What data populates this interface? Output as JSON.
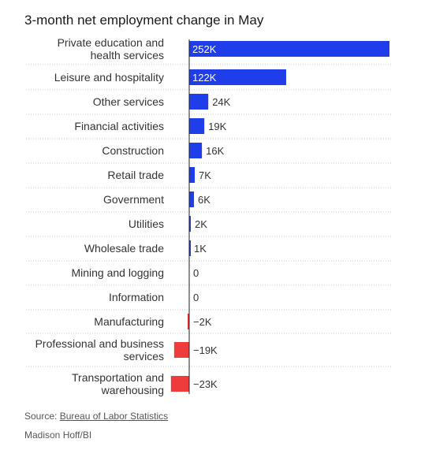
{
  "chart_data": {
    "type": "bar",
    "orientation": "horizontal",
    "title": "3-month net employment change in May",
    "categories": [
      [
        "Private education and",
        "health services"
      ],
      [
        "Leisure and hospitality"
      ],
      [
        "Other services"
      ],
      [
        "Financial activities"
      ],
      [
        "Construction"
      ],
      [
        "Retail trade"
      ],
      [
        "Government"
      ],
      [
        "Utilities"
      ],
      [
        "Wholesale trade"
      ],
      [
        "Mining and logging"
      ],
      [
        "Information"
      ],
      [
        "Manufacturing"
      ],
      [
        "Professional and business",
        "services"
      ],
      [
        "Transportation and",
        "warehousing"
      ]
    ],
    "values": [
      252,
      122,
      24,
      19,
      16,
      7,
      6,
      2,
      1,
      0,
      0,
      -2,
      -19,
      -23
    ],
    "value_labels": [
      "252K",
      "122K",
      "24K",
      "19K",
      "16K",
      "7K",
      "6K",
      "2K",
      "1K",
      "0",
      "0",
      "−2K",
      "−19K",
      "−23K"
    ],
    "xlim": [
      -23,
      252
    ],
    "positive_color": "#1f3de8",
    "negative_color": "#ee3b3b",
    "grid": false,
    "legend": "none"
  },
  "footer": {
    "source_prefix": "Source: ",
    "source_link": "Bureau of Labor Statistics",
    "credit": "Madison Hoff/BI"
  }
}
